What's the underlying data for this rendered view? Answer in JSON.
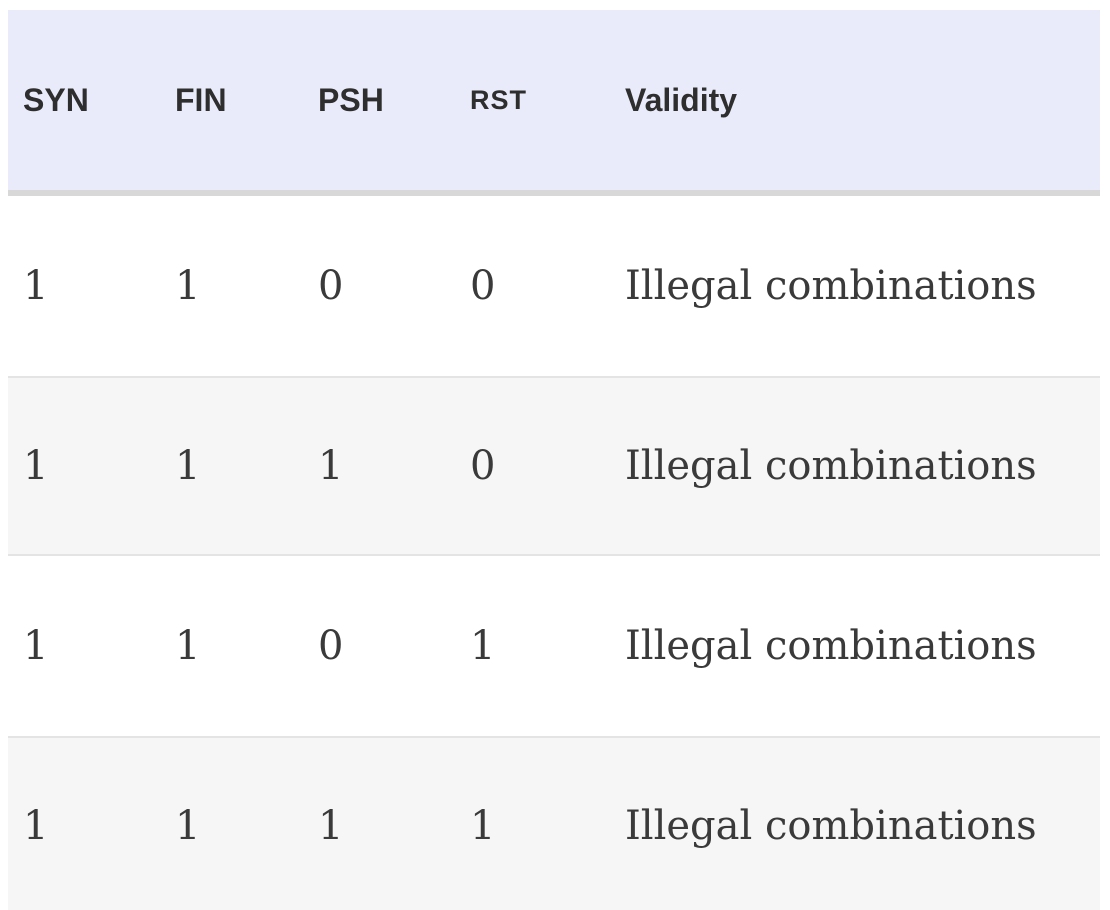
{
  "theme": {
    "page_bg": "#ffffff",
    "header_bg": "#e9ebfa",
    "header_text": "#2e2e2e",
    "body_text": "#3a3a3a",
    "divider": "#d8d8d8",
    "stripe_bg": "#f6f6f6",
    "stripe_border": "#e4e4e4"
  },
  "table": {
    "columns": [
      {
        "key": "syn",
        "label": "SYN"
      },
      {
        "key": "fin",
        "label": "FIN"
      },
      {
        "key": "psh",
        "label": "PSH"
      },
      {
        "key": "rst",
        "label": "RST"
      },
      {
        "key": "validity",
        "label": "Validity"
      }
    ],
    "rows": [
      {
        "syn": "1",
        "fin": "1",
        "psh": "0",
        "rst": "0",
        "validity": "Illegal combinations"
      },
      {
        "syn": "1",
        "fin": "1",
        "psh": "1",
        "rst": "0",
        "validity": "Illegal combinations"
      },
      {
        "syn": "1",
        "fin": "1",
        "psh": "0",
        "rst": "1",
        "validity": "Illegal combinations"
      },
      {
        "syn": "1",
        "fin": "1",
        "psh": "1",
        "rst": "1",
        "validity": "Illegal combinations"
      }
    ]
  }
}
